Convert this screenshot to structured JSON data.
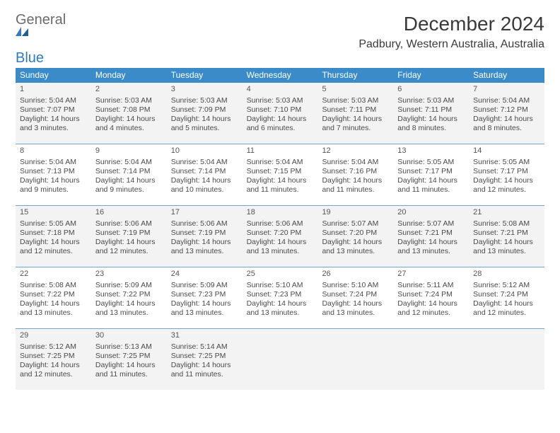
{
  "brand": {
    "word1": "General",
    "word2": "Blue"
  },
  "title": "December 2024",
  "location": "Padbury, Western Australia, Australia",
  "colors": {
    "header_bg": "#3b8bc8",
    "header_text": "#ffffff",
    "divider": "#6fa6cf",
    "shade_bg": "#f3f3f3",
    "body_text": "#4a4a4a",
    "title_text": "#3a3a3a",
    "logo_gray": "#6b6b6b",
    "logo_blue": "#2f7bbf"
  },
  "day_headers": [
    "Sunday",
    "Monday",
    "Tuesday",
    "Wednesday",
    "Thursday",
    "Friday",
    "Saturday"
  ],
  "weeks": [
    {
      "shaded": true,
      "days": [
        {
          "n": "1",
          "sr": "Sunrise: 5:04 AM",
          "ss": "Sunset: 7:07 PM",
          "d1": "Daylight: 14 hours",
          "d2": "and 3 minutes."
        },
        {
          "n": "2",
          "sr": "Sunrise: 5:03 AM",
          "ss": "Sunset: 7:08 PM",
          "d1": "Daylight: 14 hours",
          "d2": "and 4 minutes."
        },
        {
          "n": "3",
          "sr": "Sunrise: 5:03 AM",
          "ss": "Sunset: 7:09 PM",
          "d1": "Daylight: 14 hours",
          "d2": "and 5 minutes."
        },
        {
          "n": "4",
          "sr": "Sunrise: 5:03 AM",
          "ss": "Sunset: 7:10 PM",
          "d1": "Daylight: 14 hours",
          "d2": "and 6 minutes."
        },
        {
          "n": "5",
          "sr": "Sunrise: 5:03 AM",
          "ss": "Sunset: 7:11 PM",
          "d1": "Daylight: 14 hours",
          "d2": "and 7 minutes."
        },
        {
          "n": "6",
          "sr": "Sunrise: 5:03 AM",
          "ss": "Sunset: 7:11 PM",
          "d1": "Daylight: 14 hours",
          "d2": "and 8 minutes."
        },
        {
          "n": "7",
          "sr": "Sunrise: 5:04 AM",
          "ss": "Sunset: 7:12 PM",
          "d1": "Daylight: 14 hours",
          "d2": "and 8 minutes."
        }
      ]
    },
    {
      "shaded": false,
      "days": [
        {
          "n": "8",
          "sr": "Sunrise: 5:04 AM",
          "ss": "Sunset: 7:13 PM",
          "d1": "Daylight: 14 hours",
          "d2": "and 9 minutes."
        },
        {
          "n": "9",
          "sr": "Sunrise: 5:04 AM",
          "ss": "Sunset: 7:14 PM",
          "d1": "Daylight: 14 hours",
          "d2": "and 9 minutes."
        },
        {
          "n": "10",
          "sr": "Sunrise: 5:04 AM",
          "ss": "Sunset: 7:14 PM",
          "d1": "Daylight: 14 hours",
          "d2": "and 10 minutes."
        },
        {
          "n": "11",
          "sr": "Sunrise: 5:04 AM",
          "ss": "Sunset: 7:15 PM",
          "d1": "Daylight: 14 hours",
          "d2": "and 11 minutes."
        },
        {
          "n": "12",
          "sr": "Sunrise: 5:04 AM",
          "ss": "Sunset: 7:16 PM",
          "d1": "Daylight: 14 hours",
          "d2": "and 11 minutes."
        },
        {
          "n": "13",
          "sr": "Sunrise: 5:05 AM",
          "ss": "Sunset: 7:17 PM",
          "d1": "Daylight: 14 hours",
          "d2": "and 11 minutes."
        },
        {
          "n": "14",
          "sr": "Sunrise: 5:05 AM",
          "ss": "Sunset: 7:17 PM",
          "d1": "Daylight: 14 hours",
          "d2": "and 12 minutes."
        }
      ]
    },
    {
      "shaded": true,
      "days": [
        {
          "n": "15",
          "sr": "Sunrise: 5:05 AM",
          "ss": "Sunset: 7:18 PM",
          "d1": "Daylight: 14 hours",
          "d2": "and 12 minutes."
        },
        {
          "n": "16",
          "sr": "Sunrise: 5:06 AM",
          "ss": "Sunset: 7:19 PM",
          "d1": "Daylight: 14 hours",
          "d2": "and 12 minutes."
        },
        {
          "n": "17",
          "sr": "Sunrise: 5:06 AM",
          "ss": "Sunset: 7:19 PM",
          "d1": "Daylight: 14 hours",
          "d2": "and 13 minutes."
        },
        {
          "n": "18",
          "sr": "Sunrise: 5:06 AM",
          "ss": "Sunset: 7:20 PM",
          "d1": "Daylight: 14 hours",
          "d2": "and 13 minutes."
        },
        {
          "n": "19",
          "sr": "Sunrise: 5:07 AM",
          "ss": "Sunset: 7:20 PM",
          "d1": "Daylight: 14 hours",
          "d2": "and 13 minutes."
        },
        {
          "n": "20",
          "sr": "Sunrise: 5:07 AM",
          "ss": "Sunset: 7:21 PM",
          "d1": "Daylight: 14 hours",
          "d2": "and 13 minutes."
        },
        {
          "n": "21",
          "sr": "Sunrise: 5:08 AM",
          "ss": "Sunset: 7:21 PM",
          "d1": "Daylight: 14 hours",
          "d2": "and 13 minutes."
        }
      ]
    },
    {
      "shaded": false,
      "days": [
        {
          "n": "22",
          "sr": "Sunrise: 5:08 AM",
          "ss": "Sunset: 7:22 PM",
          "d1": "Daylight: 14 hours",
          "d2": "and 13 minutes."
        },
        {
          "n": "23",
          "sr": "Sunrise: 5:09 AM",
          "ss": "Sunset: 7:22 PM",
          "d1": "Daylight: 14 hours",
          "d2": "and 13 minutes."
        },
        {
          "n": "24",
          "sr": "Sunrise: 5:09 AM",
          "ss": "Sunset: 7:23 PM",
          "d1": "Daylight: 14 hours",
          "d2": "and 13 minutes."
        },
        {
          "n": "25",
          "sr": "Sunrise: 5:10 AM",
          "ss": "Sunset: 7:23 PM",
          "d1": "Daylight: 14 hours",
          "d2": "and 13 minutes."
        },
        {
          "n": "26",
          "sr": "Sunrise: 5:10 AM",
          "ss": "Sunset: 7:24 PM",
          "d1": "Daylight: 14 hours",
          "d2": "and 13 minutes."
        },
        {
          "n": "27",
          "sr": "Sunrise: 5:11 AM",
          "ss": "Sunset: 7:24 PM",
          "d1": "Daylight: 14 hours",
          "d2": "and 12 minutes."
        },
        {
          "n": "28",
          "sr": "Sunrise: 5:12 AM",
          "ss": "Sunset: 7:24 PM",
          "d1": "Daylight: 14 hours",
          "d2": "and 12 minutes."
        }
      ]
    },
    {
      "shaded": true,
      "days": [
        {
          "n": "29",
          "sr": "Sunrise: 5:12 AM",
          "ss": "Sunset: 7:25 PM",
          "d1": "Daylight: 14 hours",
          "d2": "and 12 minutes."
        },
        {
          "n": "30",
          "sr": "Sunrise: 5:13 AM",
          "ss": "Sunset: 7:25 PM",
          "d1": "Daylight: 14 hours",
          "d2": "and 11 minutes."
        },
        {
          "n": "31",
          "sr": "Sunrise: 5:14 AM",
          "ss": "Sunset: 7:25 PM",
          "d1": "Daylight: 14 hours",
          "d2": "and 11 minutes."
        },
        {
          "n": "",
          "sr": "",
          "ss": "",
          "d1": "",
          "d2": ""
        },
        {
          "n": "",
          "sr": "",
          "ss": "",
          "d1": "",
          "d2": ""
        },
        {
          "n": "",
          "sr": "",
          "ss": "",
          "d1": "",
          "d2": ""
        },
        {
          "n": "",
          "sr": "",
          "ss": "",
          "d1": "",
          "d2": ""
        }
      ]
    }
  ]
}
